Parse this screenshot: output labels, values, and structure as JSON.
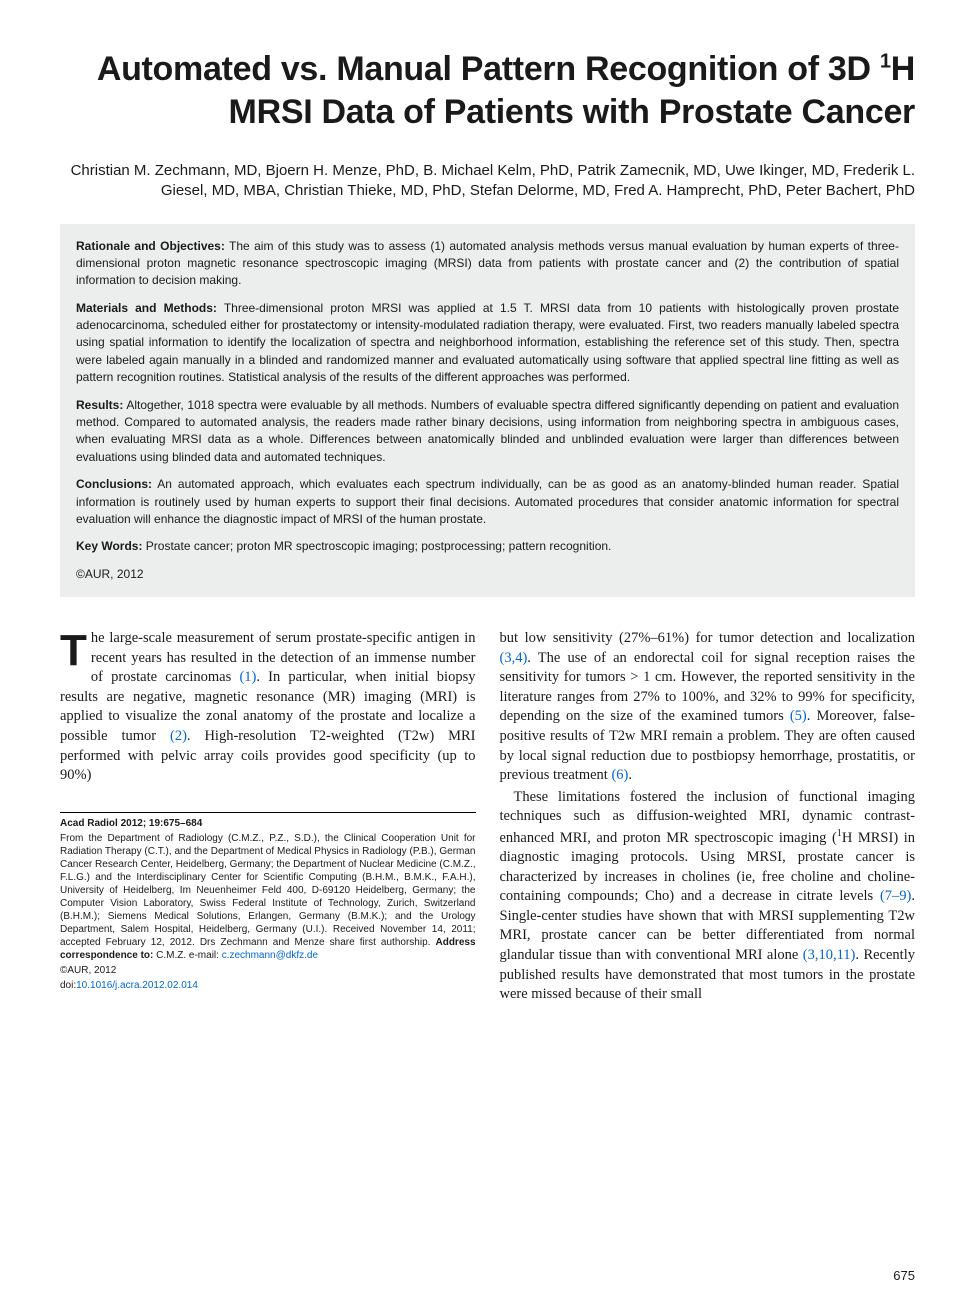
{
  "title_html": "Automated vs. Manual Pattern Recognition of 3D <sup>1</sup>H MRSI Data of Patients with Prostate Cancer",
  "authors": "Christian M. Zechmann, MD, Bjoern H. Menze, PhD, B. Michael Kelm, PhD, Patrik Zamecnik, MD, Uwe Ikinger, MD, Frederik L. Giesel, MD, MBA, Christian Thieke, MD, PhD, Stefan Delorme, MD, Fred A. Hamprecht, PhD, Peter Bachert, PhD",
  "abstract": {
    "rationale_label": "Rationale and Objectives:",
    "rationale": " The aim of this study was to assess (1) automated analysis methods versus manual evaluation by human experts of three-dimensional proton magnetic resonance spectroscopic imaging (MRSI) data from patients with prostate cancer and (2) the contribution of spatial information to decision making.",
    "methods_label": "Materials and Methods:",
    "methods": " Three-dimensional proton MRSI was applied at 1.5 T. MRSI data from 10 patients with histologically proven prostate adenocarcinoma, scheduled either for prostatectomy or intensity-modulated radiation therapy, were evaluated. First, two readers manually labeled spectra using spatial information to identify the localization of spectra and neighborhood information, establishing the reference set of this study. Then, spectra were labeled again manually in a blinded and randomized manner and evaluated automatically using software that applied spectral line fitting as well as pattern recognition routines. Statistical analysis of the results of the different approaches was performed.",
    "results_label": "Results:",
    "results": " Altogether, 1018 spectra were evaluable by all methods. Numbers of evaluable spectra differed significantly depending on patient and evaluation method. Compared to automated analysis, the readers made rather binary decisions, using information from neighboring spectra in ambiguous cases, when evaluating MRSI data as a whole. Differences between anatomically blinded and unblinded evaluation were larger than differences between evaluations using blinded data and automated techniques.",
    "conclusions_label": "Conclusions:",
    "conclusions": " An automated approach, which evaluates each spectrum individually, can be as good as an anatomy-blinded human reader. Spatial information is routinely used by human experts to support their final decisions. Automated procedures that consider anatomic information for spectral evaluation will enhance the diagnostic impact of MRSI of the human prostate.",
    "keywords_label": "Key Words:",
    "keywords": " Prostate cancer; proton MR spectroscopic imaging; postprocessing; pattern recognition.",
    "copyright": "©AUR, 2012"
  },
  "body": {
    "left_p1_html": "<span class=\"dropcap\">T</span>he large-scale measurement of serum prostate-specific antigen in recent years has resulted in the detection of an immense number of prostate carcinomas <span class=\"ref\">(1)</span>. In particular, when initial biopsy results are negative, magnetic resonance (MR) imaging (MRI) is applied to visualize the zonal anatomy of the prostate and localize a possible tumor <span class=\"ref\">(2)</span>. High-resolution T2-weighted (T2w) MRI performed with pelvic array coils provides good specificity (up to 90%)",
    "right_p1_html": "but low sensitivity (27%–61%) for tumor detection and localization <span class=\"ref\">(3,4)</span>. The use of an endorectal coil for signal reception raises the sensitivity for tumors &gt; 1 cm. However, the reported sensitivity in the literature ranges from 27% to 100%, and 32% to 99% for specificity, depending on the size of the examined tumors <span class=\"ref\">(5)</span>. Moreover, false-positive results of T2w MRI remain a problem. They are often caused by local signal reduction due to postbiopsy hemorrhage, prostatitis, or previous treatment <span class=\"ref\">(6)</span>.",
    "right_p2_html": "These limitations fostered the inclusion of functional imaging techniques such as diffusion-weighted MRI, dynamic contrast-enhanced MRI, and proton MR spectroscopic imaging (<sup class=\"s\">1</sup>H MRSI) in diagnostic imaging protocols. Using MRSI, prostate cancer is characterized by increases in cholines (ie, free choline and choline-containing compounds; Cho) and a decrease in citrate levels <span class=\"ref\">(7–9)</span>. Single-center studies have shown that with MRSI supplementing T2w MRI, prostate cancer can be better differentiated from normal glandular tissue than with conventional MRI alone <span class=\"ref\">(3,10,11)</span>. Recently published results have demonstrated that most tumors in the prostate were missed because of their small"
  },
  "footer": {
    "journal": "Acad Radiol 2012; 19:675–684",
    "affil": "From the Department of Radiology (C.M.Z., P.Z., S.D.), the Clinical Cooperation Unit for Radiation Therapy (C.T.), and the Department of Medical Physics in Radiology (P.B.), German Cancer Research Center, Heidelberg, Germany; the Department of Nuclear Medicine (C.M.Z., F.L.G.) and the Interdisciplinary Center for Scientific Computing (B.H.M., B.M.K., F.A.H.), University of Heidelberg, Im Neuenheimer Feld 400, D-69120 Heidelberg, Germany; the Computer Vision Laboratory, Swiss Federal Institute of Technology, Zurich, Switzerland (B.H.M.); Siemens Medical Solutions, Erlangen, Germany (B.M.K.); and the Urology Department, Salem Hospital, Heidelberg, Germany (U.I.). Received November 14, 2011; accepted February 12, 2012. Drs Zechmann and Menze share first authorship. ",
    "addr_label": "Address correspondence to:",
    "addr": " C.M.Z. e-mail: ",
    "email": "c.zechmann@dkfz.de",
    "copyright": "©AUR, 2012",
    "doi_label": "doi:",
    "doi": "10.1016/j.acra.2012.02.014"
  },
  "page_number": "675"
}
